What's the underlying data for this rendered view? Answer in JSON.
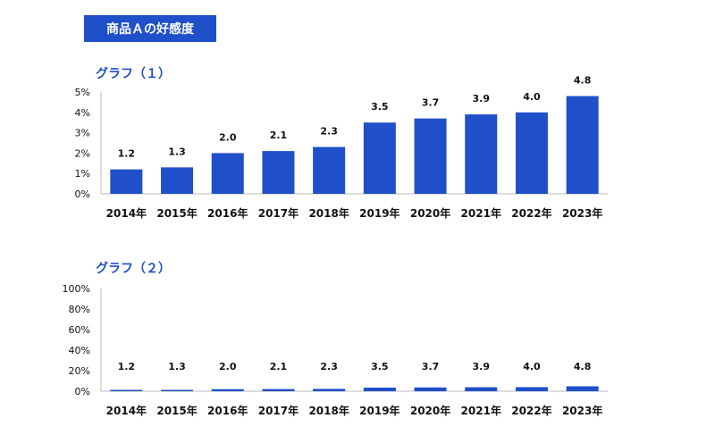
{
  "header": {
    "title": "商品Ａの好感度"
  },
  "colors": {
    "bar": "#1f4fc9",
    "axis": "#bbbbbb"
  },
  "chart_data": [
    {
      "type": "bar",
      "title": "グラフ（１）",
      "categories": [
        "2014年",
        "2015年",
        "2016年",
        "2017年",
        "2018年",
        "2019年",
        "2020年",
        "2021年",
        "2022年",
        "2023年"
      ],
      "values": [
        1.2,
        1.3,
        2.0,
        2.1,
        2.3,
        3.5,
        3.7,
        3.9,
        4.0,
        4.8
      ],
      "data_labels": [
        "1.2",
        "1.3",
        "2.0",
        "2.1",
        "2.3",
        "3.5",
        "3.7",
        "3.9",
        "4.0",
        "4.8"
      ],
      "ylim": [
        0,
        5
      ],
      "yticks": [
        "0%",
        "1%",
        "2%",
        "3%",
        "4%",
        "5%"
      ],
      "grid": false
    },
    {
      "type": "bar",
      "title": "グラフ（２）",
      "categories": [
        "2014年",
        "2015年",
        "2016年",
        "2017年",
        "2018年",
        "2019年",
        "2020年",
        "2021年",
        "2022年",
        "2023年"
      ],
      "values": [
        1.2,
        1.3,
        2.0,
        2.1,
        2.3,
        3.5,
        3.7,
        3.9,
        4.0,
        4.8
      ],
      "data_labels": [
        "1.2",
        "1.3",
        "2.0",
        "2.1",
        "2.3",
        "3.5",
        "3.7",
        "3.9",
        "4.0",
        "4.8"
      ],
      "ylim": [
        0,
        100
      ],
      "yticks": [
        "0%",
        "20%",
        "40%",
        "60%",
        "80%",
        "100%"
      ],
      "grid": false
    }
  ]
}
